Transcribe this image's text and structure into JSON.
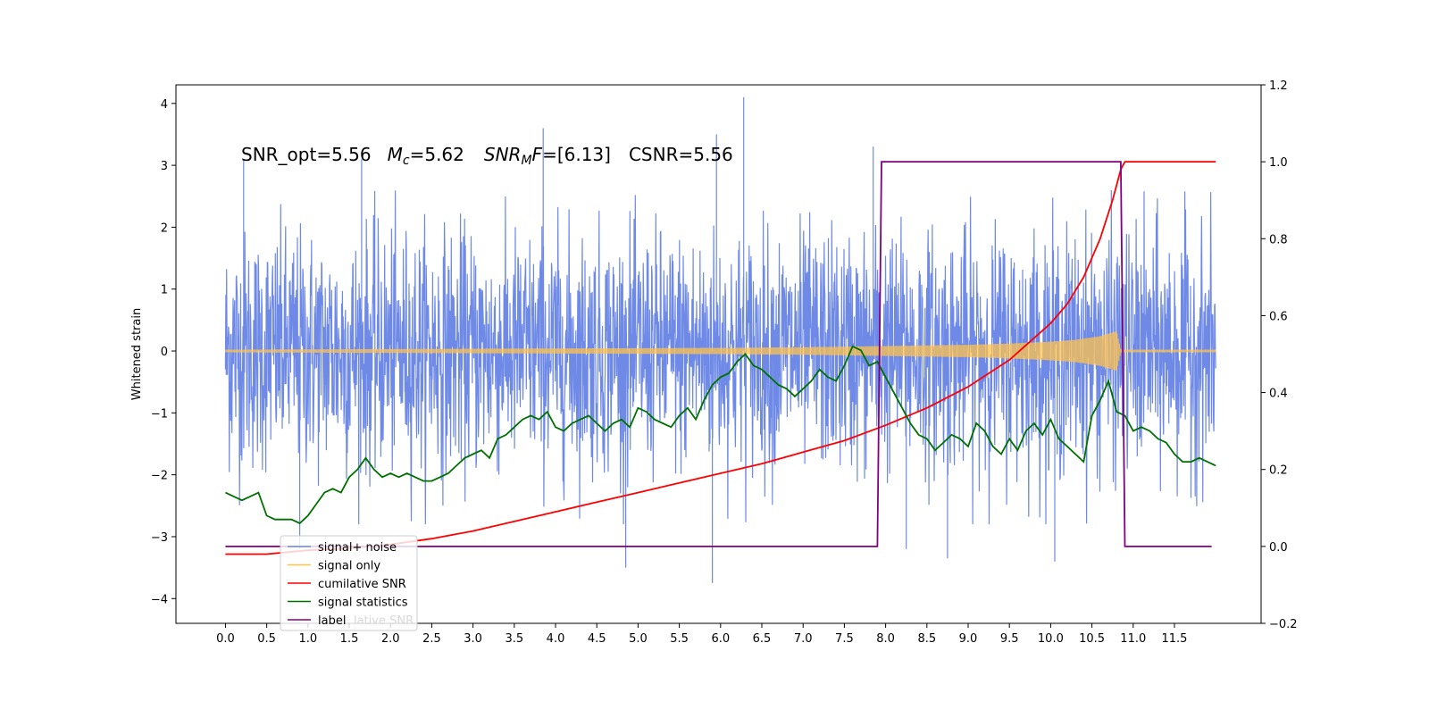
{
  "chart_data": {
    "type": "line",
    "ylabel_left": "Whitened strain",
    "annotation": {
      "snr_opt": "SNR_opt=5.56",
      "mc_sym": "M",
      "mc_sub": "c",
      "mc_val": "=5.62",
      "snrmf_sym": "SNR",
      "snrmf_sub": "M",
      "snrmf_f": "F",
      "snrmf_val": "=[6.13]",
      "csnr": "CSNR=5.56"
    },
    "x_ticks": [
      0.0,
      0.5,
      1.0,
      1.5,
      2.0,
      2.5,
      3.0,
      3.5,
      4.0,
      4.5,
      5.0,
      5.5,
      6.0,
      6.5,
      7.0,
      7.5,
      8.0,
      8.5,
      9.0,
      9.5,
      10.0,
      10.5,
      11.0,
      11.5
    ],
    "x_tick_labels": [
      "0.0",
      "0.5",
      "1.0",
      "1.5",
      "2.0",
      "2.5",
      "3.0",
      "3.5",
      "4.0",
      "4.5",
      "5.0",
      "5.5",
      "6.0",
      "6.5",
      "7.0",
      "7.5",
      "8.0",
      "8.5",
      "9.0",
      "9.5",
      "10.0",
      "10.5",
      "11.0",
      "11.5"
    ],
    "xlim": [
      -0.6,
      12.55
    ],
    "ylim_left": [
      -4.4,
      4.3
    ],
    "yticks_left": [
      -4,
      -3,
      -2,
      -1,
      0,
      1,
      2,
      3,
      4
    ],
    "yticks_left_labels": [
      "−4",
      "−3",
      "−2",
      "−1",
      "0",
      "1",
      "2",
      "3",
      "4"
    ],
    "ylim_right": [
      -0.2,
      1.2
    ],
    "yticks_right": [
      -0.2,
      0.0,
      0.2,
      0.4,
      0.6,
      0.8,
      1.0,
      1.2
    ],
    "yticks_right_labels": [
      "−0.2",
      "0.0",
      "0.2",
      "0.4",
      "0.6",
      "0.8",
      "1.0",
      "1.2"
    ],
    "grid": false,
    "legend_position": "lower-left",
    "legend": [
      {
        "label": "signal+ noise",
        "color": "#6e8ae6"
      },
      {
        "label": "signal only",
        "color": "#ffc14d"
      },
      {
        "label": "cumilative SNR",
        "color": "#ff0000"
      },
      {
        "label": "signal statistics",
        "color": "#007000"
      },
      {
        "label": "label",
        "color": "#800080"
      }
    ],
    "legend_ghost_text": "lative SNR",
    "series": [
      {
        "name": "signal+ noise",
        "axis": "left",
        "color": "#6e8ae6",
        "x_range": [
          0.0,
          12.0
        ],
        "peaks": [
          {
            "x": 0.22,
            "y": 3.1
          },
          {
            "x": 1.65,
            "y": 3.1
          },
          {
            "x": 3.85,
            "y": 3.6
          },
          {
            "x": 5.95,
            "y": 3.5
          },
          {
            "x": 6.28,
            "y": 4.1
          },
          {
            "x": 7.85,
            "y": 3.3
          },
          {
            "x": 0.9,
            "y": -3.2
          },
          {
            "x": 4.85,
            "y": -3.5
          },
          {
            "x": 5.9,
            "y": -3.75
          },
          {
            "x": 8.25,
            "y": -3.2
          },
          {
            "x": 8.75,
            "y": -3.35
          },
          {
            "x": 10.05,
            "y": -3.4
          }
        ]
      },
      {
        "name": "signal only",
        "axis": "left",
        "color": "#ffc14d",
        "x": [
          0.0,
          2.0,
          4.0,
          6.0,
          7.0,
          8.0,
          9.0,
          9.5,
          10.0,
          10.3,
          10.6,
          10.8,
          10.85,
          11.0,
          12.0
        ],
        "amplitude": [
          0.02,
          0.03,
          0.04,
          0.05,
          0.06,
          0.08,
          0.1,
          0.12,
          0.15,
          0.18,
          0.24,
          0.32,
          0.02,
          0.02,
          0.02
        ]
      },
      {
        "name": "cumilative SNR",
        "axis": "right",
        "color": "#ff0000",
        "x": [
          0.0,
          0.5,
          1.0,
          1.5,
          2.0,
          2.5,
          3.0,
          3.5,
          4.0,
          4.5,
          5.0,
          5.5,
          6.0,
          6.5,
          7.0,
          7.5,
          8.0,
          8.5,
          9.0,
          9.5,
          10.0,
          10.2,
          10.4,
          10.6,
          10.75,
          10.85,
          10.9,
          12.0
        ],
        "y": [
          -0.02,
          -0.02,
          -0.01,
          -0.005,
          0.005,
          0.02,
          0.04,
          0.065,
          0.09,
          0.115,
          0.14,
          0.165,
          0.19,
          0.215,
          0.245,
          0.275,
          0.315,
          0.36,
          0.415,
          0.485,
          0.58,
          0.63,
          0.7,
          0.8,
          0.9,
          0.98,
          1.0,
          1.0
        ]
      },
      {
        "name": "signal statistics",
        "axis": "right",
        "color": "#007000",
        "x": [
          0.0,
          0.1,
          0.2,
          0.3,
          0.4,
          0.5,
          0.6,
          0.7,
          0.8,
          0.9,
          1.0,
          1.1,
          1.2,
          1.3,
          1.4,
          1.5,
          1.6,
          1.7,
          1.8,
          1.9,
          2.0,
          2.1,
          2.2,
          2.3,
          2.4,
          2.5,
          2.6,
          2.7,
          2.8,
          2.9,
          3.0,
          3.1,
          3.2,
          3.3,
          3.4,
          3.5,
          3.6,
          3.7,
          3.8,
          3.9,
          4.0,
          4.1,
          4.2,
          4.3,
          4.4,
          4.5,
          4.6,
          4.7,
          4.8,
          4.9,
          5.0,
          5.1,
          5.2,
          5.3,
          5.4,
          5.5,
          5.6,
          5.7,
          5.8,
          5.9,
          6.0,
          6.1,
          6.2,
          6.3,
          6.4,
          6.5,
          6.6,
          6.7,
          6.8,
          6.9,
          7.0,
          7.1,
          7.2,
          7.3,
          7.4,
          7.5,
          7.6,
          7.7,
          7.8,
          7.9,
          8.0,
          8.1,
          8.2,
          8.3,
          8.4,
          8.5,
          8.6,
          8.7,
          8.8,
          8.9,
          9.0,
          9.1,
          9.2,
          9.3,
          9.4,
          9.5,
          9.6,
          9.7,
          9.8,
          9.9,
          10.0,
          10.1,
          10.2,
          10.3,
          10.4,
          10.5,
          10.6,
          10.7,
          10.8,
          10.9,
          11.0,
          11.1,
          11.2,
          11.3,
          11.4,
          11.5,
          11.6,
          11.7,
          11.8,
          11.9,
          12.0
        ],
        "y": [
          0.14,
          0.13,
          0.12,
          0.13,
          0.14,
          0.08,
          0.07,
          0.07,
          0.07,
          0.06,
          0.08,
          0.11,
          0.14,
          0.15,
          0.14,
          0.18,
          0.2,
          0.23,
          0.2,
          0.18,
          0.19,
          0.18,
          0.19,
          0.18,
          0.17,
          0.17,
          0.18,
          0.19,
          0.21,
          0.23,
          0.24,
          0.25,
          0.23,
          0.28,
          0.29,
          0.31,
          0.33,
          0.34,
          0.33,
          0.35,
          0.31,
          0.3,
          0.32,
          0.33,
          0.34,
          0.32,
          0.3,
          0.32,
          0.33,
          0.31,
          0.36,
          0.35,
          0.33,
          0.32,
          0.31,
          0.34,
          0.36,
          0.33,
          0.38,
          0.42,
          0.44,
          0.45,
          0.48,
          0.5,
          0.47,
          0.46,
          0.44,
          0.42,
          0.41,
          0.39,
          0.41,
          0.43,
          0.46,
          0.44,
          0.43,
          0.47,
          0.52,
          0.51,
          0.47,
          0.48,
          0.44,
          0.4,
          0.36,
          0.32,
          0.29,
          0.28,
          0.25,
          0.27,
          0.29,
          0.28,
          0.26,
          0.32,
          0.3,
          0.26,
          0.24,
          0.28,
          0.25,
          0.3,
          0.32,
          0.29,
          0.33,
          0.28,
          0.26,
          0.24,
          0.22,
          0.34,
          0.38,
          0.43,
          0.35,
          0.34,
          0.3,
          0.31,
          0.3,
          0.28,
          0.27,
          0.24,
          0.22,
          0.22,
          0.23,
          0.22,
          0.21
        ]
      },
      {
        "name": "label",
        "axis": "right",
        "color": "#800080",
        "x": [
          0.0,
          7.9,
          7.95,
          10.85,
          10.9,
          11.95
        ],
        "y": [
          0.0,
          0.0,
          1.0,
          1.0,
          0.0,
          0.0
        ]
      }
    ]
  }
}
